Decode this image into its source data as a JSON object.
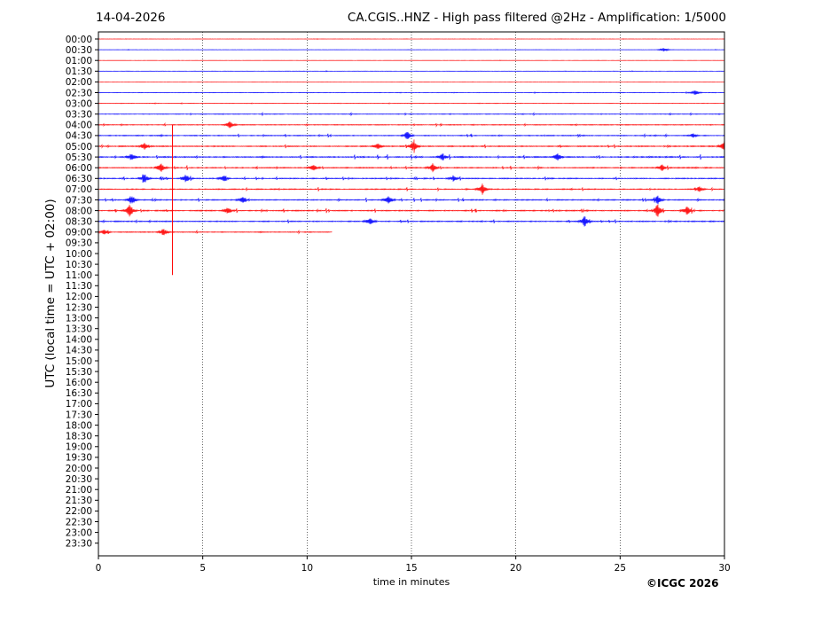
{
  "header": {
    "date": "14-04-2026",
    "title": "CA.CGIS..HNZ - High pass filtered @2Hz - Amplification: 1/5000"
  },
  "footer": {
    "copyright": "©ICGC 2026"
  },
  "chart_data": {
    "type": "line",
    "subtype": "helicorder",
    "station": "CA.CGIS..HNZ",
    "xlabel": "time in minutes",
    "ylabel": "UTC (local time = UTC + 02:00)",
    "xlim": [
      0,
      30
    ],
    "x_ticks": [
      "0",
      "5",
      "10",
      "15",
      "20",
      "25",
      "30"
    ],
    "y_ticks": [
      "00:00",
      "00:30",
      "01:00",
      "01:30",
      "02:00",
      "02:30",
      "03:00",
      "03:30",
      "04:00",
      "04:30",
      "05:00",
      "05:30",
      "06:00",
      "06:30",
      "07:00",
      "07:30",
      "08:00",
      "08:30",
      "09:00",
      "09:30",
      "10:00",
      "10:30",
      "11:00",
      "11:30",
      "12:00",
      "12:30",
      "13:00",
      "13:30",
      "14:00",
      "14:30",
      "15:00",
      "15:30",
      "16:00",
      "16:30",
      "17:00",
      "17:30",
      "18:00",
      "18:30",
      "19:00",
      "19:30",
      "20:00",
      "20:30",
      "21:00",
      "21:30",
      "22:00",
      "22:30",
      "23:00",
      "23:30"
    ],
    "vertical_grid_minutes": [
      5,
      10,
      15,
      20,
      25
    ],
    "line_colors": [
      "#ff0000",
      "#0000ff"
    ],
    "trace_end_minutes": [
      30,
      30,
      30,
      30,
      30,
      30,
      30,
      30,
      30,
      30,
      30,
      30,
      30,
      30,
      30,
      30,
      30,
      30,
      11.2
    ],
    "activity": [
      0.15,
      0.2,
      0.12,
      0.2,
      0.12,
      0.3,
      0.35,
      0.5,
      0.6,
      0.7,
      0.9,
      1.0,
      0.9,
      0.8,
      0.8,
      0.8,
      0.9,
      0.9,
      0.7
    ],
    "events": [
      {
        "row": 1,
        "minute": 27.1,
        "amp": 0.3
      },
      {
        "row": 5,
        "minute": 28.6,
        "amp": 0.4
      },
      {
        "row": 8,
        "minute": 6.3,
        "amp": 0.5
      },
      {
        "row": 9,
        "minute": 14.8,
        "amp": 0.6
      },
      {
        "row": 9,
        "minute": 28.5,
        "amp": 0.3
      },
      {
        "row": 10,
        "minute": 2.2,
        "amp": 0.5
      },
      {
        "row": 10,
        "minute": 13.4,
        "amp": 0.5
      },
      {
        "row": 10,
        "minute": 15.1,
        "amp": 0.8
      },
      {
        "row": 10,
        "minute": 30.0,
        "amp": 0.9
      },
      {
        "row": 11,
        "minute": 1.6,
        "amp": 0.6
      },
      {
        "row": 11,
        "minute": 16.5,
        "amp": 0.5
      },
      {
        "row": 11,
        "minute": 22.0,
        "amp": 0.5
      },
      {
        "row": 12,
        "minute": 3.0,
        "amp": 0.7
      },
      {
        "row": 12,
        "minute": 10.3,
        "amp": 0.5
      },
      {
        "row": 12,
        "minute": 16.0,
        "amp": 0.6
      },
      {
        "row": 12,
        "minute": 27.0,
        "amp": 0.5
      },
      {
        "row": 13,
        "minute": 2.2,
        "amp": 0.7
      },
      {
        "row": 13,
        "minute": 4.2,
        "amp": 0.6
      },
      {
        "row": 13,
        "minute": 6.0,
        "amp": 0.5
      },
      {
        "row": 13,
        "minute": 17.0,
        "amp": 0.4
      },
      {
        "row": 14,
        "minute": 18.4,
        "amp": 0.8
      },
      {
        "row": 14,
        "minute": 28.8,
        "amp": 0.4
      },
      {
        "row": 15,
        "minute": 1.6,
        "amp": 0.7
      },
      {
        "row": 15,
        "minute": 6.9,
        "amp": 0.5
      },
      {
        "row": 15,
        "minute": 13.9,
        "amp": 0.6
      },
      {
        "row": 15,
        "minute": 26.8,
        "amp": 0.6
      },
      {
        "row": 16,
        "minute": 1.5,
        "amp": 0.9
      },
      {
        "row": 16,
        "minute": 6.2,
        "amp": 0.5
      },
      {
        "row": 16,
        "minute": 26.8,
        "amp": 0.9
      },
      {
        "row": 16,
        "minute": 28.2,
        "amp": 0.7
      },
      {
        "row": 17,
        "minute": 13.0,
        "amp": 0.5
      },
      {
        "row": 17,
        "minute": 23.3,
        "amp": 0.7
      },
      {
        "row": 18,
        "minute": 0.3,
        "amp": 0.4
      },
      {
        "row": 18,
        "minute": 3.1,
        "amp": 0.6
      }
    ],
    "spikes": [
      {
        "row": 8,
        "minute": 3.55,
        "extent_rows": 14
      }
    ]
  }
}
